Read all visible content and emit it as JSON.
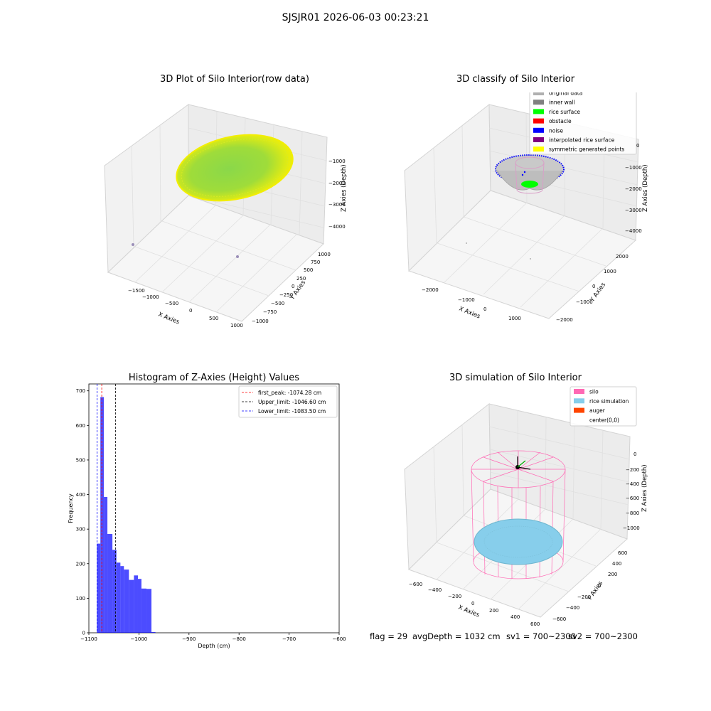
{
  "suptitle": "SJSJR01 2026-06-03 00:23:21",
  "panel1": {
    "title": "3D Plot of Silo Interior(row data)",
    "xlabel": "X Axies",
    "ylabel": "Y Axies",
    "zlabel": "Z Axies (Depth)",
    "xticks": [
      "−1500",
      "−1000",
      "−500",
      "0",
      "500",
      "1000"
    ],
    "yticks": [
      "−1000",
      "−750",
      "−500",
      "−250",
      "0",
      "250",
      "500",
      "750",
      "1000"
    ],
    "zticks": [
      "−1000",
      "−2000",
      "−3000",
      "−4000"
    ]
  },
  "panel2": {
    "title": "3D classify of Silo Interior",
    "xlabel": "X Axies",
    "ylabel": "Y Axies",
    "zlabel": "Z Axies (Depth)",
    "xticks": [
      "−2000",
      "−1000",
      "0",
      "1000"
    ],
    "yticks": [
      "−2000",
      "−1000",
      "0",
      "1000",
      "2000"
    ],
    "zticks": [
      "0",
      "−1000",
      "−2000",
      "−3000",
      "−4000"
    ],
    "legend": [
      {
        "label": "original data",
        "color": "#b0b0b0"
      },
      {
        "label": "inner wall",
        "color": "#808080"
      },
      {
        "label": "rice surface",
        "color": "#00ff00"
      },
      {
        "label": "obstacle",
        "color": "#ff0000"
      },
      {
        "label": "noise",
        "color": "#0000ff"
      },
      {
        "label": "interpolated rice surface",
        "color": "#800080"
      },
      {
        "label": "symmetric generated points",
        "color": "#ffff00"
      }
    ]
  },
  "panel4": {
    "title": "3D simulation of Silo Interior",
    "xlabel": "X Axies",
    "ylabel": "Y Axies",
    "zlabel": "Z Axies (Depth)",
    "xticks": [
      "−600",
      "−400",
      "−200",
      "0",
      "200",
      "400",
      "600"
    ],
    "yticks": [
      "−600",
      "−400",
      "−200",
      "0",
      "200",
      "400",
      "600"
    ],
    "zticks": [
      "0",
      "−200",
      "−400",
      "−600",
      "−800",
      "−1000"
    ],
    "legend": [
      {
        "label": "silo",
        "color": "#ff69b4"
      },
      {
        "label": "rice simulation",
        "color": "#87ceeb"
      },
      {
        "label": "auger",
        "color": "#ff4500"
      },
      {
        "label": "center(0,0)",
        "color": ""
      }
    ]
  },
  "footer": {
    "flag": "flag = 29",
    "avg": "avgDepth = 1032 cm",
    "sv1": "sv1 = 700~2300",
    "sv2": "sv2 = 700~2300"
  },
  "chart_data": {
    "type": "bar",
    "title": "Histogram of Z-Axies (Height) Values",
    "xlabel": "Depth (cm)",
    "ylabel": "Frequency",
    "xlim": [
      -1100,
      -600
    ],
    "ylim": [
      0,
      720
    ],
    "xticks": [
      -1100,
      -1000,
      -900,
      -800,
      -700,
      -600
    ],
    "yticks": [
      0,
      100,
      200,
      300,
      400,
      500,
      600,
      700
    ],
    "bins": [
      {
        "x0": -1084,
        "x1": -1077,
        "value": 258
      },
      {
        "x0": -1077,
        "x1": -1070,
        "value": 682
      },
      {
        "x0": -1070,
        "x1": -1063,
        "value": 393
      },
      {
        "x0": -1063,
        "x1": -1053,
        "value": 286
      },
      {
        "x0": -1053,
        "x1": -1045,
        "value": 240
      },
      {
        "x0": -1045,
        "x1": -1037,
        "value": 203
      },
      {
        "x0": -1037,
        "x1": -1030,
        "value": 193
      },
      {
        "x0": -1030,
        "x1": -1020,
        "value": 183
      },
      {
        "x0": -1020,
        "x1": -1010,
        "value": 153
      },
      {
        "x0": -1010,
        "x1": -1002,
        "value": 166
      },
      {
        "x0": -1002,
        "x1": -995,
        "value": 156
      },
      {
        "x0": -995,
        "x1": -985,
        "value": 128
      },
      {
        "x0": -985,
        "x1": -975,
        "value": 127
      },
      {
        "x0": -975,
        "x1": -967,
        "value": 2
      }
    ],
    "lines": [
      {
        "label": "first_peak: -1074.28 cm",
        "x": -1074.28,
        "color": "#ff0000"
      },
      {
        "label": "Upper_limit: -1046.60 cm",
        "x": -1046.6,
        "color": "#000000"
      },
      {
        "label": "Lower_limit: -1083.50 cm",
        "x": -1083.5,
        "color": "#0000ff"
      }
    ],
    "bar_color": "#0000ff",
    "legend_position": "top-right"
  }
}
